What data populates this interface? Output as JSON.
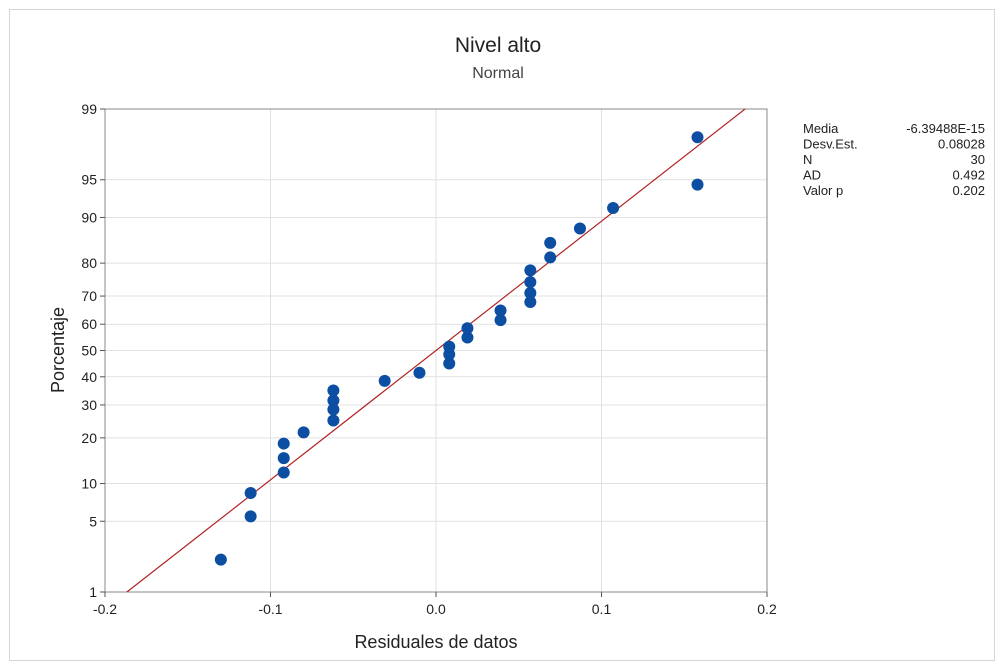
{
  "chart_data": {
    "type": "scatter",
    "subtype": "normal-probability-plot",
    "title": "Nivel alto",
    "subtitle": "Normal",
    "xlabel": "Residuales de datos",
    "ylabel": "Porcentaje",
    "xlim": [
      -0.2,
      0.2
    ],
    "ylim": [
      1,
      99
    ],
    "x_ticks": [
      {
        "value": -0.2,
        "label": "-0.2"
      },
      {
        "value": -0.1,
        "label": "-0.1"
      },
      {
        "value": 0.0,
        "label": "0.0"
      },
      {
        "value": 0.1,
        "label": "0.1"
      },
      {
        "value": 0.2,
        "label": "0.2"
      }
    ],
    "y_ticks": [
      {
        "value": 1,
        "label": "1"
      },
      {
        "value": 5,
        "label": "5"
      },
      {
        "value": 10,
        "label": "10"
      },
      {
        "value": 20,
        "label": "20"
      },
      {
        "value": 30,
        "label": "30"
      },
      {
        "value": 40,
        "label": "40"
      },
      {
        "value": 50,
        "label": "50"
      },
      {
        "value": 60,
        "label": "60"
      },
      {
        "value": 70,
        "label": "70"
      },
      {
        "value": 80,
        "label": "80"
      },
      {
        "value": 90,
        "label": "90"
      },
      {
        "value": 95,
        "label": "95"
      },
      {
        "value": 99,
        "label": "99"
      }
    ],
    "grid": true,
    "point_color": "#0B4EA2",
    "line_color": "#B22222",
    "fit_line": {
      "mean": 0.0,
      "stdev": 0.08028
    },
    "points": [
      {
        "x": -0.13,
        "y": 2.2
      },
      {
        "x": -0.112,
        "y": 5.5
      },
      {
        "x": -0.112,
        "y": 8.5
      },
      {
        "x": -0.092,
        "y": 12.0
      },
      {
        "x": -0.092,
        "y": 15.0
      },
      {
        "x": -0.092,
        "y": 18.5
      },
      {
        "x": -0.08,
        "y": 21.5
      },
      {
        "x": -0.062,
        "y": 25.0
      },
      {
        "x": -0.062,
        "y": 28.5
      },
      {
        "x": -0.062,
        "y": 31.5
      },
      {
        "x": -0.062,
        "y": 35.0
      },
      {
        "x": -0.031,
        "y": 38.5
      },
      {
        "x": -0.01,
        "y": 41.5
      },
      {
        "x": 0.008,
        "y": 45.0
      },
      {
        "x": 0.008,
        "y": 48.5
      },
      {
        "x": 0.008,
        "y": 51.5
      },
      {
        "x": 0.019,
        "y": 55.0
      },
      {
        "x": 0.019,
        "y": 58.5
      },
      {
        "x": 0.039,
        "y": 61.5
      },
      {
        "x": 0.039,
        "y": 65.0
      },
      {
        "x": 0.057,
        "y": 68.0
      },
      {
        "x": 0.057,
        "y": 71.0
      },
      {
        "x": 0.057,
        "y": 74.5
      },
      {
        "x": 0.057,
        "y": 78.0
      },
      {
        "x": 0.069,
        "y": 81.5
      },
      {
        "x": 0.069,
        "y": 85.0
      },
      {
        "x": 0.087,
        "y": 88.0
      },
      {
        "x": 0.107,
        "y": 91.5
      },
      {
        "x": 0.158,
        "y": 94.5
      },
      {
        "x": 0.158,
        "y": 98.0
      }
    ],
    "stats": [
      {
        "label": "Media",
        "value": "-6.39488E-15"
      },
      {
        "label": "Desv.Est.",
        "value": "0.08028"
      },
      {
        "label": "N",
        "value": "30"
      },
      {
        "label": "AD",
        "value": "0.492"
      },
      {
        "label": "Valor p",
        "value": "0.202"
      }
    ]
  }
}
